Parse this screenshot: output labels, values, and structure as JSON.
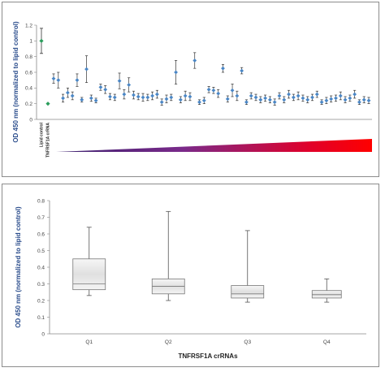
{
  "chart_data": [
    {
      "type": "scatter",
      "ylabel": "OD 450 nm  (normalized to lipid control)",
      "ylim": [
        0,
        1.2
      ],
      "yticks": [
        "0",
        "0.2",
        "0.4",
        "0.6",
        "0.8",
        "1",
        "1.2"
      ],
      "control_labels": [
        "Lipid control",
        "TNFRSF1A crRNA"
      ],
      "gradient_colors": [
        "#3a1f6e",
        "#7a2a8a",
        "#e0002a",
        "#ff0000"
      ],
      "control_color": "#2a9d5c",
      "point_color": "#4a86c5",
      "controls": [
        {
          "value": 1.0,
          "err": 0.16
        },
        {
          "value": 0.2,
          "err": 0.0
        }
      ],
      "values": [
        0.52,
        0.5,
        0.27,
        0.34,
        0.3,
        0.5,
        0.25,
        0.64,
        0.27,
        0.24,
        0.41,
        0.38,
        0.29,
        0.28,
        0.49,
        0.32,
        0.44,
        0.31,
        0.29,
        0.28,
        0.28,
        0.3,
        0.32,
        0.22,
        0.26,
        0.28,
        0.6,
        0.25,
        0.3,
        0.29,
        0.75,
        0.22,
        0.24,
        0.38,
        0.37,
        0.33,
        0.65,
        0.26,
        0.37,
        0.3,
        0.62,
        0.22,
        0.3,
        0.28,
        0.25,
        0.27,
        0.25,
        0.22,
        0.3,
        0.25,
        0.32,
        0.28,
        0.3,
        0.27,
        0.25,
        0.28,
        0.32,
        0.22,
        0.24,
        0.26,
        0.27,
        0.3,
        0.25,
        0.27,
        0.32,
        0.22,
        0.25,
        0.24
      ],
      "errors": [
        0.06,
        0.1,
        0.05,
        0.06,
        0.05,
        0.08,
        0.03,
        0.17,
        0.04,
        0.03,
        0.04,
        0.05,
        0.04,
        0.04,
        0.1,
        0.06,
        0.09,
        0.05,
        0.04,
        0.05,
        0.04,
        0.05,
        0.05,
        0.04,
        0.05,
        0.04,
        0.15,
        0.04,
        0.06,
        0.05,
        0.1,
        0.03,
        0.04,
        0.04,
        0.04,
        0.05,
        0.05,
        0.04,
        0.08,
        0.06,
        0.04,
        0.03,
        0.04,
        0.04,
        0.04,
        0.04,
        0.04,
        0.04,
        0.04,
        0.04,
        0.05,
        0.04,
        0.05,
        0.04,
        0.04,
        0.04,
        0.04,
        0.03,
        0.04,
        0.04,
        0.04,
        0.05,
        0.04,
        0.04,
        0.05,
        0.03,
        0.04,
        0.04
      ]
    },
    {
      "type": "box",
      "xlabel": "TNFRSF1A crRNAs",
      "ylabel": "OD 450 nm  (normalized to lipid control)",
      "ylim": [
        0,
        0.8
      ],
      "yticks": [
        "0",
        "0.1",
        "0.2",
        "0.3",
        "0.4",
        "0.5",
        "0.6",
        "0.7",
        "0.8"
      ],
      "categories": [
        "Q1",
        "Q2",
        "Q3",
        "Q4"
      ],
      "boxes": [
        {
          "min": 0.23,
          "q1": 0.265,
          "median": 0.3,
          "q3": 0.45,
          "max": 0.64
        },
        {
          "min": 0.2,
          "q1": 0.24,
          "median": 0.285,
          "q3": 0.33,
          "max": 0.735
        },
        {
          "min": 0.19,
          "q1": 0.215,
          "median": 0.24,
          "q3": 0.29,
          "max": 0.62
        },
        {
          "min": 0.19,
          "q1": 0.215,
          "median": 0.235,
          "q3": 0.26,
          "max": 0.33
        }
      ]
    }
  ]
}
